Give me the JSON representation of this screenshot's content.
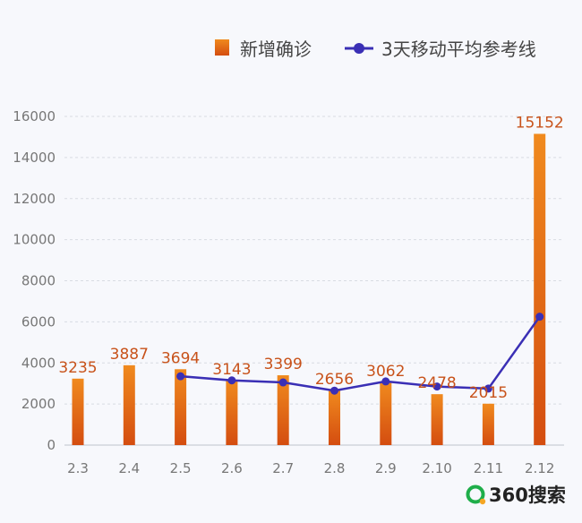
{
  "legend": {
    "bar_label": "新增确诊",
    "line_label": "3天移动平均参考线"
  },
  "brand": {
    "name": "360搜索",
    "icon": "360-search-logo-icon"
  },
  "colors": {
    "bar_top": "#f08a1e",
    "bar_bottom": "#d44d10",
    "line": "#3a2fb5",
    "label": "#c8521a",
    "grid": "#d8dbe2",
    "brand_green": "#1fae4a"
  },
  "chart_data": {
    "type": "bar",
    "categories": [
      "2.3",
      "2.4",
      "2.5",
      "2.6",
      "2.7",
      "2.8",
      "2.9",
      "2.10",
      "2.11",
      "2.12"
    ],
    "series": [
      {
        "name": "新增确诊",
        "type": "bar",
        "values": [
          3235,
          3887,
          3694,
          3143,
          3399,
          2656,
          3062,
          2478,
          2015,
          15152
        ],
        "labels": [
          "3235",
          "3887",
          "3694",
          "3143",
          "3399",
          "2656",
          "3062",
          "2478",
          "2015",
          "15152"
        ]
      },
      {
        "name": "3天移动平均参考线",
        "type": "line",
        "values": [
          null,
          null,
          3350,
          3150,
          3050,
          2650,
          3100,
          2850,
          2750,
          6250
        ]
      }
    ],
    "yticks": [
      "0",
      "2000",
      "4000",
      "6000",
      "8000",
      "10000",
      "12000",
      "14000",
      "16000"
    ],
    "ylim": [
      0,
      16000
    ],
    "grid": true,
    "legend_position": "top-right"
  }
}
